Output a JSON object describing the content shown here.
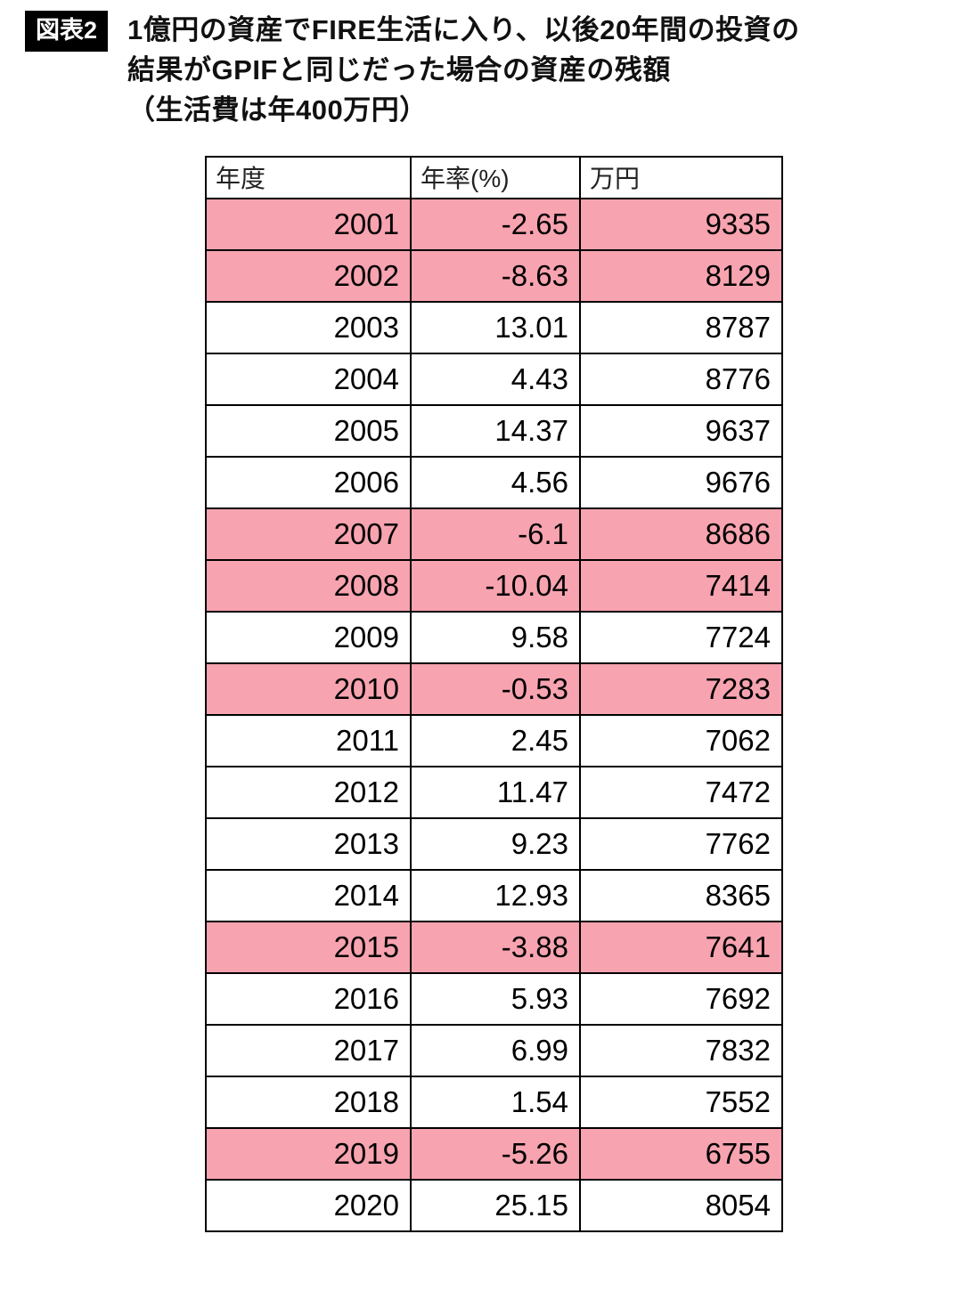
{
  "figure": {
    "badge": "図表2",
    "title_lines": [
      "1億円の資産でFIRE生活に入り、以後20年間の投資の",
      "結果がGPIFと同じだった場合の資産の残額",
      "（生活費は年400万円）"
    ]
  },
  "table": {
    "headers": [
      "年度",
      "年率(%)",
      "万円"
    ],
    "rows": [
      {
        "year": "2001",
        "rate": "-2.65",
        "amount": "9335",
        "negative": true
      },
      {
        "year": "2002",
        "rate": "-8.63",
        "amount": "8129",
        "negative": true
      },
      {
        "year": "2003",
        "rate": "13.01",
        "amount": "8787",
        "negative": false
      },
      {
        "year": "2004",
        "rate": "4.43",
        "amount": "8776",
        "negative": false
      },
      {
        "year": "2005",
        "rate": "14.37",
        "amount": "9637",
        "negative": false
      },
      {
        "year": "2006",
        "rate": "4.56",
        "amount": "9676",
        "negative": false
      },
      {
        "year": "2007",
        "rate": "-6.1",
        "amount": "8686",
        "negative": true
      },
      {
        "year": "2008",
        "rate": "-10.04",
        "amount": "7414",
        "negative": true
      },
      {
        "year": "2009",
        "rate": "9.58",
        "amount": "7724",
        "negative": false
      },
      {
        "year": "2010",
        "rate": "-0.53",
        "amount": "7283",
        "negative": true
      },
      {
        "year": "2011",
        "rate": "2.45",
        "amount": "7062",
        "negative": false
      },
      {
        "year": "2012",
        "rate": "11.47",
        "amount": "7472",
        "negative": false
      },
      {
        "year": "2013",
        "rate": "9.23",
        "amount": "7762",
        "negative": false
      },
      {
        "year": "2014",
        "rate": "12.93",
        "amount": "8365",
        "negative": false
      },
      {
        "year": "2015",
        "rate": "-3.88",
        "amount": "7641",
        "negative": true
      },
      {
        "year": "2016",
        "rate": "5.93",
        "amount": "7692",
        "negative": false
      },
      {
        "year": "2017",
        "rate": "6.99",
        "amount": "7832",
        "negative": false
      },
      {
        "year": "2018",
        "rate": "1.54",
        "amount": "7552",
        "negative": false
      },
      {
        "year": "2019",
        "rate": "-5.26",
        "amount": "6755",
        "negative": true
      },
      {
        "year": "2020",
        "rate": "25.15",
        "amount": "8054",
        "negative": false
      }
    ]
  },
  "colors": {
    "negative_row": "#f7a3b0",
    "badge_bg": "#000000",
    "border": "#000000"
  },
  "chart_data": {
    "type": "table",
    "title": "1億円の資産でFIRE生活に入り、以後20年間の投資の結果がGPIFと同じだった場合の資産の残額（生活費は年400万円）",
    "columns": [
      "年度",
      "年率(%)",
      "万円"
    ],
    "categories": [
      2001,
      2002,
      2003,
      2004,
      2005,
      2006,
      2007,
      2008,
      2009,
      2010,
      2011,
      2012,
      2013,
      2014,
      2015,
      2016,
      2017,
      2018,
      2019,
      2020
    ],
    "series": [
      {
        "name": "年率(%)",
        "values": [
          -2.65,
          -8.63,
          13.01,
          4.43,
          14.37,
          4.56,
          -6.1,
          -10.04,
          9.58,
          -0.53,
          2.45,
          11.47,
          9.23,
          12.93,
          -3.88,
          5.93,
          6.99,
          1.54,
          -5.26,
          25.15
        ]
      },
      {
        "name": "万円",
        "values": [
          9335,
          8129,
          8787,
          8776,
          9637,
          9676,
          8686,
          7414,
          7724,
          7283,
          7062,
          7472,
          7762,
          8365,
          7641,
          7692,
          7832,
          7552,
          6755,
          8054
        ]
      }
    ],
    "layout_hints": {
      "highlight": "rows with negative annual rate are shaded pink",
      "grid": true,
      "legend_position": "none"
    }
  }
}
